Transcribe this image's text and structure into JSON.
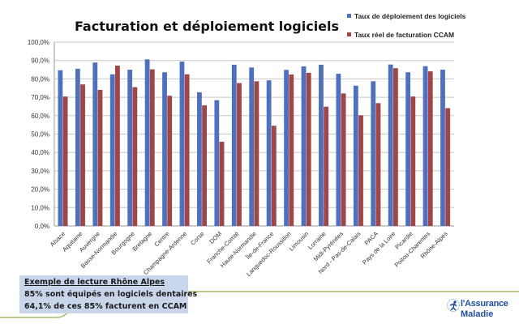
{
  "chart_data": {
    "type": "bar",
    "title": "Facturation et déploiement logiciels",
    "xlabel": "",
    "ylabel": "",
    "ylim": [
      0,
      100
    ],
    "ytick_labels": [
      "0,0%",
      "10,0%",
      "20,0%",
      "30,0%",
      "40,0%",
      "50,0%",
      "60,0%",
      "70,0%",
      "80,0%",
      "90,0%",
      "100,0%"
    ],
    "grid": true,
    "legend_position": "top-right",
    "categories": [
      "Alsace",
      "Aquitaine",
      "Auvergne",
      "Basse-Normandie",
      "Bourgogne",
      "Bretagne",
      "Centre",
      "Champagne-Ardenne",
      "Corse",
      "DOM",
      "Franche-Comté",
      "Haute-Normandie",
      "Île-de-France",
      "Languedoc-Roussillon",
      "Limousin",
      "Lorraine",
      "Midi-Pyrénées",
      "Nord - Pas-de-Calais",
      "PACA",
      "Pays de la Loire",
      "Picardie",
      "Poitou-Charentes",
      "Rhône-Alpes"
    ],
    "series": [
      {
        "name": "Taux de déploiement des logiciels",
        "color": "#4f6fbf",
        "values": [
          84.7,
          85.5,
          88.9,
          82.5,
          85.0,
          90.6,
          83.6,
          89.4,
          72.7,
          68.4,
          87.7,
          86.2,
          79.2,
          84.9,
          86.8,
          87.7,
          82.8,
          76.3,
          78.7,
          87.8,
          83.6,
          86.9,
          85.0
        ]
      },
      {
        "name": "Taux réel de facturation CCAM",
        "color": "#a04646",
        "values": [
          70.4,
          77.0,
          74.0,
          87.2,
          75.5,
          85.2,
          70.8,
          82.5,
          65.6,
          45.8,
          77.7,
          78.7,
          54.5,
          82.4,
          83.3,
          64.9,
          72.1,
          60.2,
          66.8,
          85.8,
          70.4,
          84.1,
          64.1
        ]
      }
    ]
  },
  "note": {
    "title": "Exemple de lecture Rhône Alpes",
    "line1": "85% sont équipés en logiciels dentaires",
    "line2": "64,1% de ces 85% facturent en CCAM"
  },
  "logo": {
    "line1": "l'Assurance",
    "line2": "Maladie"
  },
  "colors": {
    "deco_line": "#8ab04a",
    "note_bg": "#c9d5ea",
    "logo_blue": "#1f4e9c"
  }
}
